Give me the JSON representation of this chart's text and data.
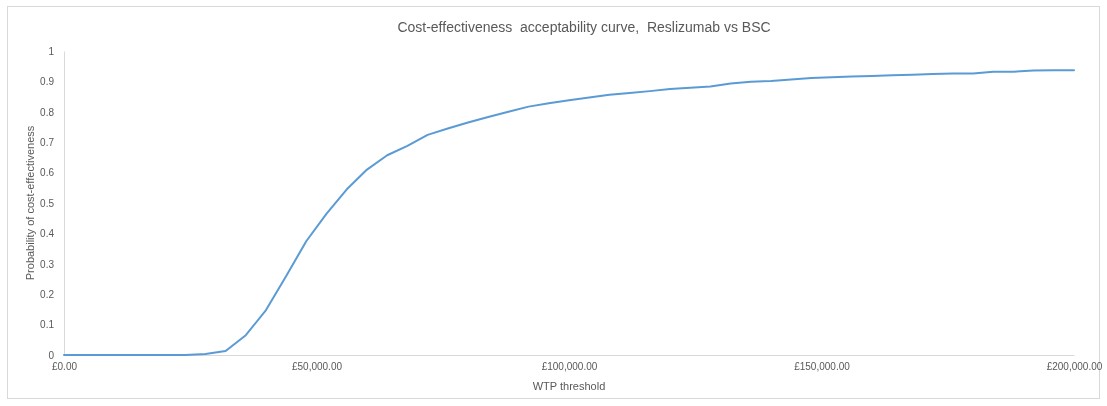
{
  "chart_data": {
    "type": "line",
    "title": "Cost-effectiveness  acceptability curve,  Reslizumab vs BSC",
    "xlabel": "WTP threshold",
    "ylabel": "Probability of cost-effectiveness",
    "x": [
      0,
      4000,
      8000,
      12000,
      16000,
      20000,
      24000,
      28000,
      32000,
      36000,
      40000,
      44000,
      48000,
      52000,
      56000,
      60000,
      64000,
      68000,
      72000,
      76000,
      80000,
      84000,
      88000,
      92000,
      96000,
      100000,
      104000,
      108000,
      112000,
      116000,
      120000,
      124000,
      128000,
      132000,
      136000,
      140000,
      144000,
      148000,
      152000,
      156000,
      160000,
      164000,
      168000,
      172000,
      176000,
      180000,
      184000,
      188000,
      192000,
      196000,
      200000
    ],
    "series": [
      {
        "color": "#5b9bd5",
        "values": [
          0,
          0,
          0,
          0,
          0,
          0,
          0,
          0.003,
          0.013,
          0.065,
          0.148,
          0.26,
          0.375,
          0.465,
          0.545,
          0.61,
          0.657,
          0.688,
          0.724,
          0.745,
          0.765,
          0.783,
          0.8,
          0.817,
          0.828,
          0.838,
          0.847,
          0.856,
          0.862,
          0.868,
          0.875,
          0.879,
          0.883,
          0.893,
          0.899,
          0.901,
          0.906,
          0.911,
          0.914,
          0.916,
          0.918,
          0.92,
          0.922,
          0.924,
          0.926,
          0.926,
          0.932,
          0.932,
          0.936,
          0.937,
          0.937
        ]
      }
    ],
    "xlim": [
      0,
      200000
    ],
    "xticks": [
      {
        "value": 0,
        "label": "£0.00"
      },
      {
        "value": 50000,
        "label": "£50,000.00"
      },
      {
        "value": 100000,
        "label": "£100,000.00"
      },
      {
        "value": 150000,
        "label": "£150,000.00"
      },
      {
        "value": 200000,
        "label": "£200,000.00"
      }
    ],
    "ylim": [
      0,
      1
    ],
    "yticks": [
      0,
      0.1,
      0.2,
      0.3,
      0.4,
      0.5,
      0.6,
      0.7,
      0.8,
      0.9,
      1
    ],
    "grid": false,
    "marker": "none",
    "line_style": "solid"
  }
}
